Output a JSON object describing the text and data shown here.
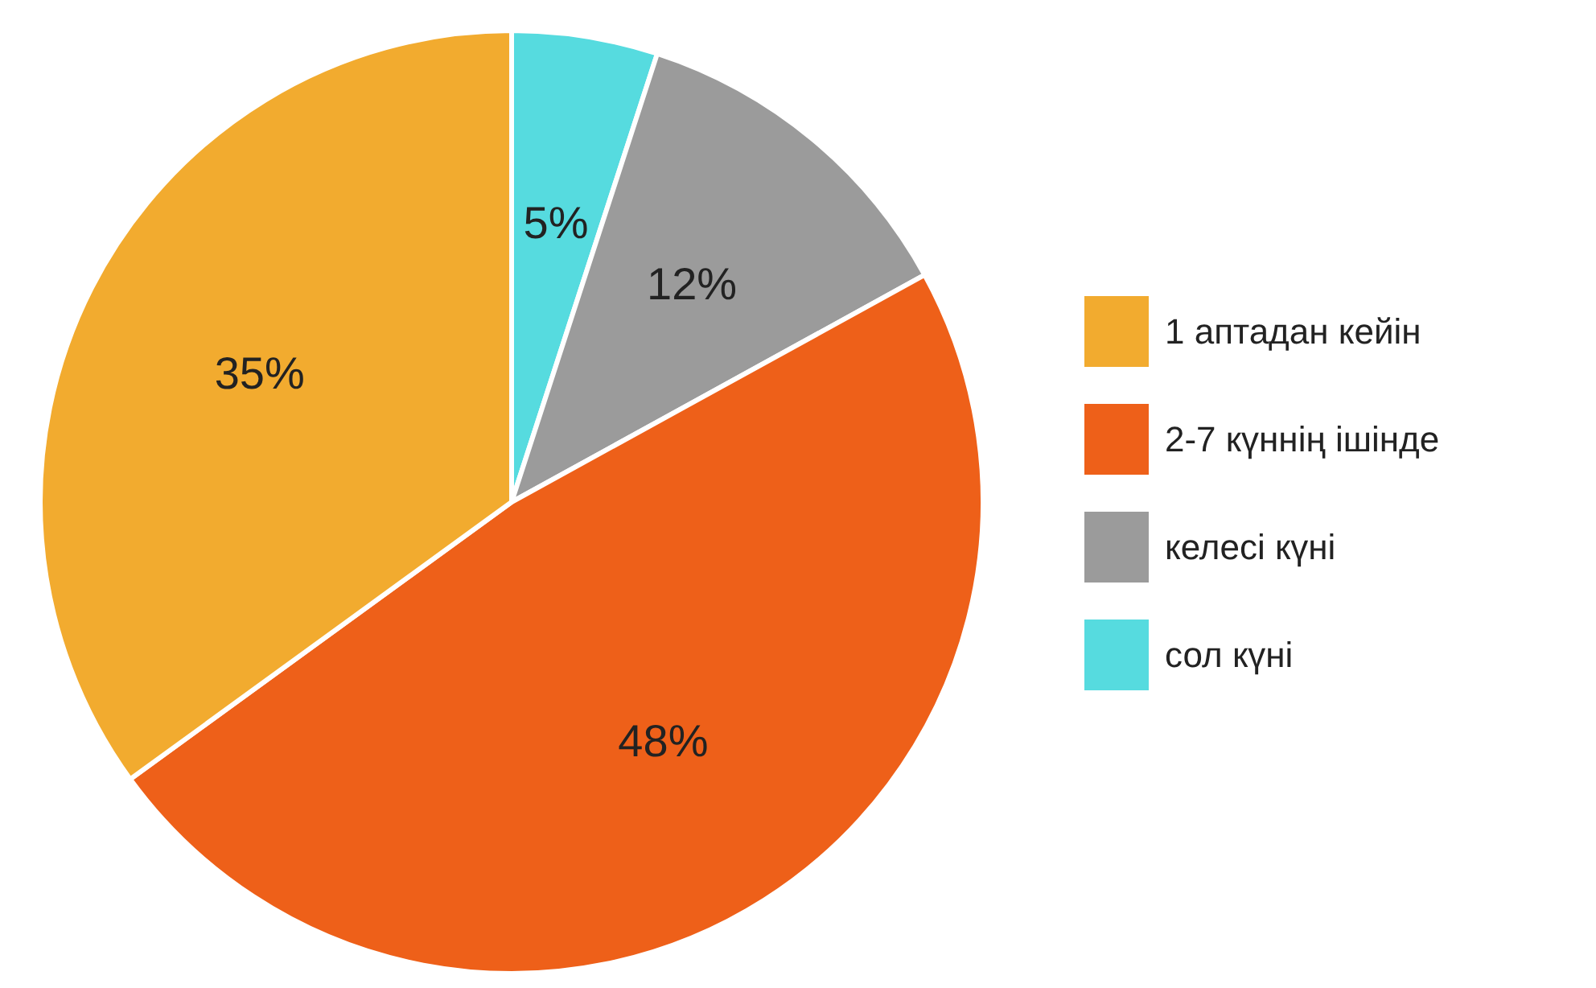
{
  "chart_data": {
    "type": "pie",
    "categories": [
      "сол күні",
      "келесі күні",
      "2-7 күннің ішінде",
      "1 аптадан кейін"
    ],
    "values": [
      5,
      12,
      48,
      35
    ],
    "colors": [
      "#56dbdf",
      "#9b9b9b",
      "#ee6019",
      "#f2ab2f"
    ],
    "value_labels": [
      "5%",
      "12%",
      "48%",
      "35%"
    ],
    "legend": "right"
  }
}
